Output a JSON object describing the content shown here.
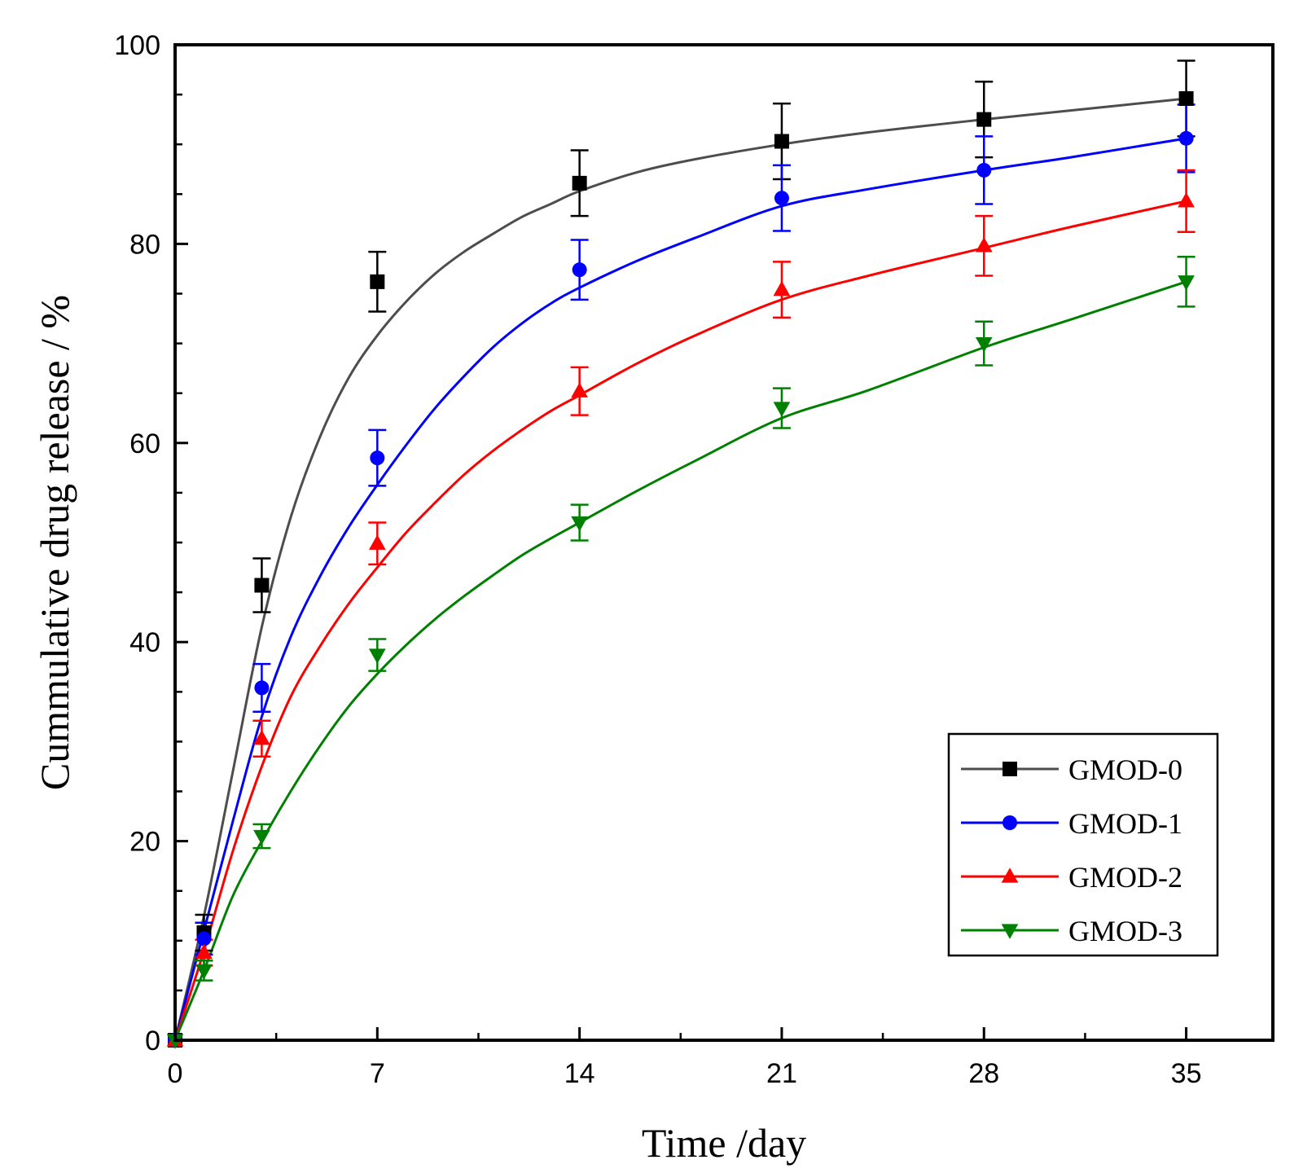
{
  "chart_data": {
    "type": "line",
    "title": "",
    "xlabel": "Time /day",
    "ylabel": "Cummulative drug release / %",
    "xlim": [
      0,
      38
    ],
    "ylim": [
      0,
      100
    ],
    "xticks": [
      0,
      7,
      14,
      21,
      28,
      35
    ],
    "yticks": [
      0,
      20,
      40,
      60,
      80,
      100
    ],
    "xminor": [
      3.5,
      10.5,
      17.5,
      24.5,
      31.5
    ],
    "yminor": [
      5,
      10,
      15,
      25,
      30,
      35,
      45,
      50,
      55,
      65,
      70,
      75,
      85,
      90,
      95
    ],
    "grid": false,
    "legend_position": "bottom-right",
    "x": [
      0,
      1,
      3,
      7,
      14,
      21,
      28,
      35
    ],
    "series": [
      {
        "name": "GMOD-0",
        "color": "#000000",
        "line_color": "#4d4d4d",
        "marker": "square",
        "values": [
          0,
          10.8,
          45.7,
          76.2,
          86.1,
          90.3,
          92.5,
          94.6
        ],
        "errors": [
          0,
          1.8,
          2.7,
          3.0,
          3.3,
          3.8,
          3.8,
          3.8
        ],
        "fit_x": [
          0,
          1,
          2,
          3,
          4,
          5,
          6,
          7,
          8,
          9,
          10,
          11,
          12,
          13,
          14,
          16,
          18,
          21,
          24,
          28,
          31,
          35
        ],
        "fit_y": [
          0,
          12.5,
          27.0,
          41.5,
          52.5,
          60.5,
          66.5,
          70.8,
          74.2,
          77.0,
          79.2,
          81.0,
          82.7,
          84.0,
          85.3,
          87.2,
          88.5,
          90.0,
          91.2,
          92.5,
          93.4,
          94.6
        ]
      },
      {
        "name": "GMOD-1",
        "color": "#0000ff",
        "line_color": "#0000ff",
        "marker": "circle",
        "values": [
          0,
          10.2,
          35.4,
          58.5,
          77.4,
          84.6,
          87.4,
          90.6
        ],
        "errors": [
          0,
          1.6,
          2.4,
          2.8,
          3.0,
          3.3,
          3.4,
          3.4
        ],
        "fit_x": [
          0,
          1,
          2,
          3,
          4,
          5,
          6,
          7,
          8,
          9,
          10,
          11,
          12,
          13,
          14,
          16,
          18,
          21,
          24,
          28,
          31,
          35
        ],
        "fit_y": [
          0,
          11.0,
          22.0,
          32.5,
          40.5,
          46.5,
          51.5,
          55.8,
          59.8,
          63.5,
          66.7,
          69.6,
          72.0,
          74.0,
          75.6,
          78.3,
          80.6,
          83.8,
          85.5,
          87.4,
          88.7,
          90.6
        ]
      },
      {
        "name": "GMOD-2",
        "color": "#ff0000",
        "line_color": "#ff0000",
        "marker": "triangle-up",
        "values": [
          0,
          8.8,
          30.3,
          49.9,
          65.2,
          75.4,
          79.8,
          84.3
        ],
        "errors": [
          0,
          1.3,
          1.8,
          2.1,
          2.4,
          2.8,
          3.0,
          3.1
        ],
        "fit_x": [
          0,
          1,
          2,
          3,
          4,
          5,
          6,
          7,
          8,
          9,
          10,
          11,
          12,
          13,
          14,
          16,
          18,
          21,
          24,
          28,
          31,
          35
        ],
        "fit_y": [
          0,
          9.0,
          19.0,
          27.5,
          34.5,
          39.5,
          43.8,
          47.5,
          51.0,
          54.0,
          56.8,
          59.2,
          61.3,
          63.2,
          64.8,
          68.0,
          70.8,
          74.4,
          76.8,
          79.6,
          81.7,
          84.3
        ]
      },
      {
        "name": "GMOD-3",
        "color": "#008000",
        "line_color": "#008000",
        "marker": "triangle-down",
        "values": [
          0,
          7.0,
          20.5,
          38.7,
          52.0,
          63.5,
          70.0,
          76.2
        ],
        "errors": [
          0,
          1.0,
          1.2,
          1.6,
          1.8,
          2.0,
          2.2,
          2.5
        ],
        "fit_x": [
          0,
          1,
          2,
          3,
          4,
          5,
          6,
          7,
          8,
          9,
          10,
          11,
          12,
          13,
          14,
          16,
          18,
          21,
          24,
          28,
          31,
          35
        ],
        "fit_y": [
          0,
          7.0,
          14.5,
          20.0,
          25.0,
          29.5,
          33.5,
          36.8,
          39.7,
          42.3,
          44.6,
          46.7,
          48.7,
          50.4,
          52.0,
          55.2,
          58.2,
          62.5,
          65.3,
          69.6,
          72.4,
          76.2
        ]
      }
    ]
  }
}
